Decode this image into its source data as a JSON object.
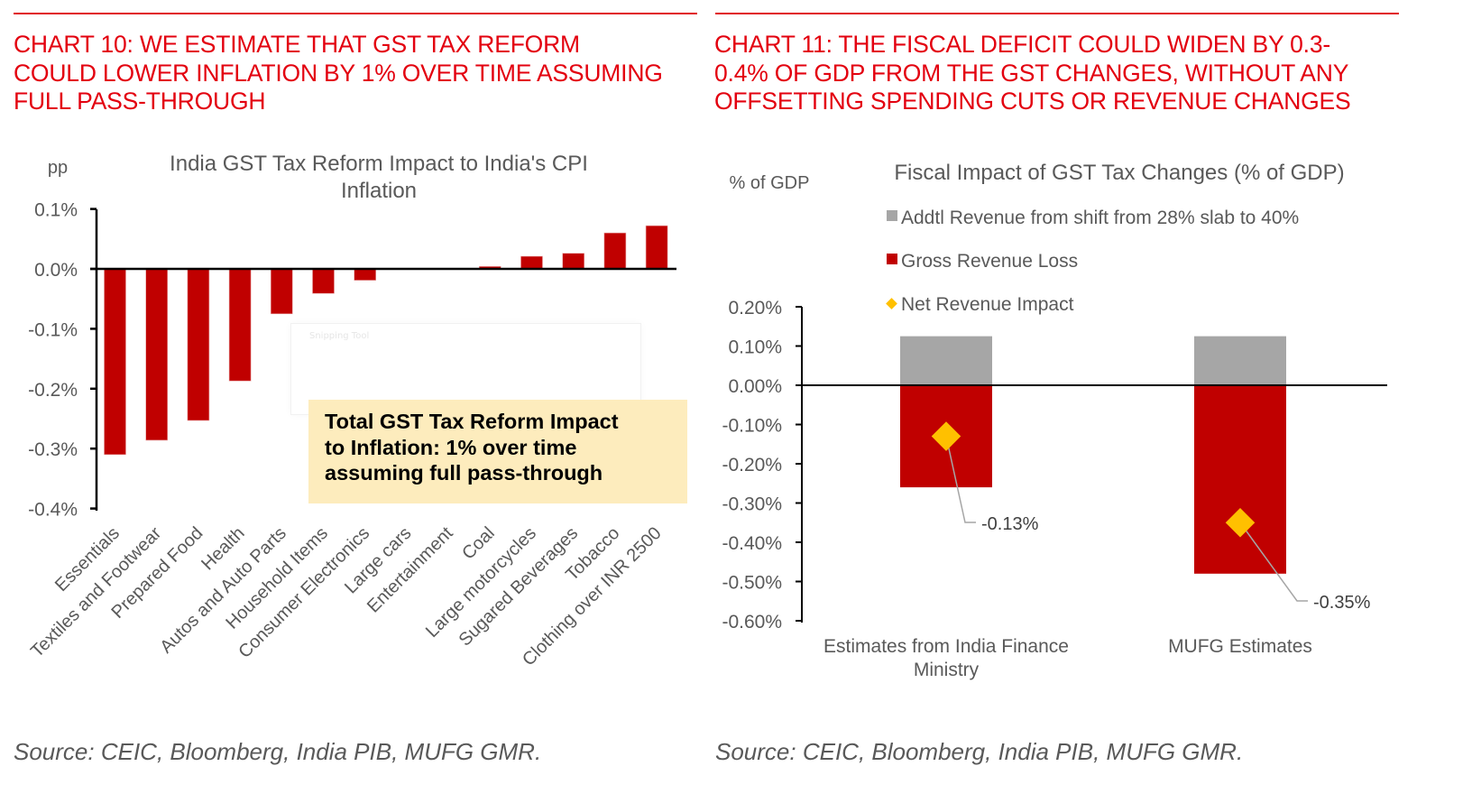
{
  "left": {
    "headline": "CHART 10: WE ESTIMATE THAT GST TAX REFORM COULD LOWER INFLATION BY 1% OVER TIME ASSUMING FULL PASS-THROUGH",
    "headline_lines": [
      "CHART 10: WE ESTIMATE THAT GST TAX REFORM",
      "COULD LOWER INFLATION BY 1% OVER TIME ASSUMING",
      "FULL PASS-THROUGH"
    ],
    "source": "Source: CEIC, Bloomberg, India PIB, MUFG GMR.",
    "callout_lines": [
      "Total GST Tax Reform Impact",
      "to Inflation: 1% over time",
      "assuming full pass-through"
    ],
    "overlay_label": "Snipping Tool"
  },
  "right": {
    "headline": "CHART 11: THE FISCAL DEFICIT COULD WIDEN BY 0.3-0.4% OF GDP FROM THE GST CHANGES, WITHOUT ANY OFFSETTING SPENDING CUTS OR REVENUE CHANGES",
    "headline_lines": [
      "CHART 11: THE FISCAL DEFICIT COULD WIDEN BY 0.3-",
      "0.4% OF GDP FROM THE GST CHANGES, WITHOUT ANY",
      "OFFSETTING SPENDING CUTS OR REVENUE CHANGES"
    ],
    "source": "Source: CEIC, Bloomberg, India PIB, MUFG GMR."
  },
  "colors": {
    "accent_red": "#e3000f",
    "bar_red": "#c00000",
    "bar_gray": "#a6a6a6",
    "marker_gold": "#ffc000",
    "callout_bg": "#fdecbd"
  },
  "chart_data": [
    {
      "type": "bar",
      "title": "India GST Tax Reform Impact to India's CPI Inflation",
      "title_lines": [
        "India GST Tax Reform Impact to India's CPI",
        "Inflation"
      ],
      "ylabel": "pp",
      "xlabel": "",
      "ylim": [
        -0.4,
        0.1
      ],
      "yticks": [
        0.1,
        0.0,
        -0.1,
        -0.2,
        -0.3,
        -0.4
      ],
      "ytick_labels": [
        "0.1%",
        "0.0%",
        "-0.1%",
        "-0.2%",
        "-0.3%",
        "-0.4%"
      ],
      "categories": [
        "Essentials",
        "Textiles and Footwear",
        "Prepared Food",
        "Health",
        "Autos and Auto Parts",
        "Household Items",
        "Consumer Electronics",
        "Large cars",
        "Entertainment",
        "Coal",
        "Large motorcycles",
        "Sugared Beverages",
        "Tobacco",
        "Clothing over INR 2500"
      ],
      "values": [
        -0.31,
        -0.286,
        -0.253,
        -0.187,
        -0.075,
        -0.041,
        -0.019,
        0.0,
        0.0,
        0.004,
        0.021,
        0.026,
        0.06,
        0.072
      ],
      "grid": false,
      "annotation": "Total GST Tax Reform Impact to Inflation: 1% over time assuming full pass-through"
    },
    {
      "type": "bar",
      "stacked": true,
      "title": "Fiscal Impact of GST Tax Changes (% of GDP)",
      "ylabel": "% of GDP",
      "xlabel": "",
      "ylim": [
        -0.6,
        0.2
      ],
      "yticks": [
        0.2,
        0.1,
        0.0,
        -0.1,
        -0.2,
        -0.3,
        -0.4,
        -0.5,
        -0.6
      ],
      "ytick_labels": [
        "0.20%",
        "0.10%",
        "0.00%",
        "-0.10%",
        "-0.20%",
        "-0.30%",
        "-0.40%",
        "-0.50%",
        "-0.60%"
      ],
      "categories": [
        "Estimates from India Finance Ministry",
        "MUFG Estimates"
      ],
      "category_lines": [
        [
          "Estimates from India Finance",
          "Ministry"
        ],
        [
          "MUFG Estimates"
        ]
      ],
      "series": [
        {
          "name": "Addtl Revenue from shift from 28% slab to 40%",
          "kind": "bar",
          "color": "#a6a6a6",
          "values": [
            0.125,
            0.125
          ]
        },
        {
          "name": "Gross Revenue Loss",
          "kind": "bar",
          "color": "#c00000",
          "values": [
            -0.26,
            -0.48
          ]
        },
        {
          "name": "Net Revenue Impact",
          "kind": "marker",
          "marker": "diamond",
          "color": "#ffc000",
          "values": [
            -0.13,
            -0.35
          ]
        }
      ],
      "data_labels": [
        "-0.13%",
        "-0.35%"
      ],
      "legend": "top",
      "grid": false
    }
  ]
}
